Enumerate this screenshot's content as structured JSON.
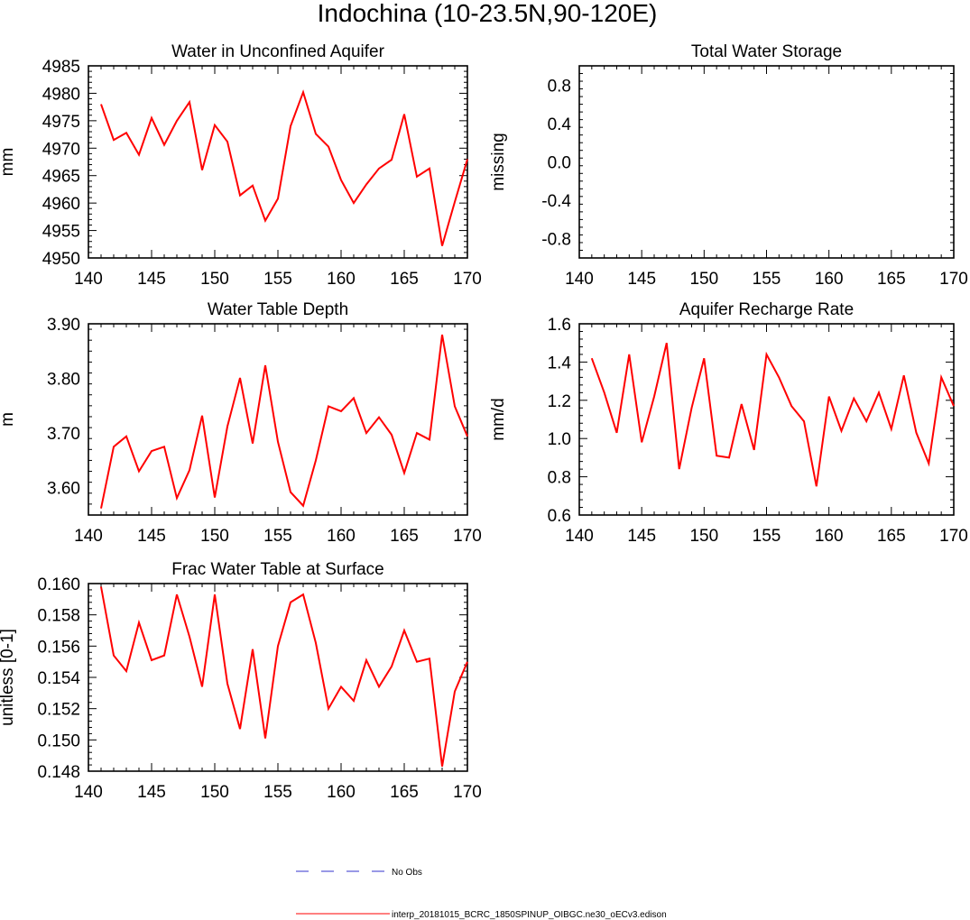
{
  "figure_title": "Indochina (10-23.5N,90-120E)",
  "colors": {
    "model": "#ff0000",
    "obs": "#3333cc",
    "axis": "#000000"
  },
  "legend": {
    "obs_label": "No Obs",
    "model_label": "interp_20181015_BCRC_1850SPINUP_OIBGC.ne30_oECv3.edison"
  },
  "chart_data": [
    {
      "id": "wa",
      "type": "line",
      "title": "Water in Unconfined Aquifer",
      "ylabel": "mm",
      "xlim": [
        140,
        170
      ],
      "ylim": [
        4950,
        4985
      ],
      "xticks": [
        140,
        145,
        150,
        155,
        160,
        165,
        170
      ],
      "xtick_labels": [
        "140",
        "145",
        "150",
        "155",
        "160",
        "165",
        "170"
      ],
      "yticks": [
        4950,
        4955,
        4960,
        4965,
        4970,
        4975,
        4980,
        4985
      ],
      "ytick_labels": [
        "4950",
        "4955",
        "4960",
        "4965",
        "4970",
        "4975",
        "4980",
        "4985"
      ],
      "x": [
        141,
        142,
        143,
        144,
        145,
        146,
        147,
        148,
        149,
        150,
        151,
        152,
        153,
        154,
        155,
        156,
        157,
        158,
        159,
        160,
        161,
        162,
        163,
        164,
        165,
        166,
        167,
        168,
        169,
        170
      ],
      "series": [
        {
          "name": "interp_20181015_BCRC_1850SPINUP_OIBGC.ne30_oECv3.edison",
          "values": [
            4978.0,
            4971.5,
            4972.8,
            4968.8,
            4975.5,
            4970.6,
            4975.0,
            4978.4,
            4966.0,
            4974.2,
            4971.2,
            4961.4,
            4963.2,
            4956.8,
            4960.8,
            4974.0,
            4980.2,
            4972.6,
            4970.3,
            4964.2,
            4960.0,
            4963.4,
            4966.3,
            4967.9,
            4976.2,
            4964.8,
            4966.3,
            4952.2,
            4960.2,
            4968.0
          ]
        }
      ]
    },
    {
      "id": "tws",
      "type": "line",
      "title": "Total Water Storage",
      "ylabel": "missing",
      "xlim": [
        140,
        170
      ],
      "ylim": [
        -1.0,
        1.0
      ],
      "xticks": [
        140,
        145,
        150,
        155,
        160,
        165,
        170
      ],
      "xtick_labels": [
        "140",
        "145",
        "150",
        "155",
        "160",
        "165",
        "170"
      ],
      "yticks": [
        -0.8,
        -0.4,
        0.0,
        0.4,
        0.8
      ],
      "ytick_labels": [
        "-0.8",
        "-0.4",
        "0.0",
        "0.4",
        "0.8"
      ],
      "x": [],
      "series": []
    },
    {
      "id": "wtd",
      "type": "line",
      "title": "Water Table Depth",
      "ylabel": "m",
      "xlim": [
        140,
        170
      ],
      "ylim": [
        3.55,
        3.9
      ],
      "xticks": [
        140,
        145,
        150,
        155,
        160,
        165,
        170
      ],
      "xtick_labels": [
        "140",
        "145",
        "150",
        "155",
        "160",
        "165",
        "170"
      ],
      "yticks": [
        3.6,
        3.7,
        3.8,
        3.9
      ],
      "ytick_labels": [
        "3.60",
        "3.70",
        "3.80",
        "3.90"
      ],
      "x": [
        141,
        142,
        143,
        144,
        145,
        146,
        147,
        148,
        149,
        150,
        151,
        152,
        153,
        154,
        155,
        156,
        157,
        158,
        159,
        160,
        161,
        162,
        163,
        164,
        165,
        166,
        167,
        168,
        169,
        170
      ],
      "series": [
        {
          "name": "interp_20181015_BCRC_1850SPINUP_OIBGC.ne30_oECv3.edison",
          "values": [
            3.562,
            3.675,
            3.694,
            3.63,
            3.667,
            3.675,
            3.581,
            3.632,
            3.732,
            3.582,
            3.712,
            3.801,
            3.681,
            3.824,
            3.684,
            3.592,
            3.567,
            3.65,
            3.749,
            3.74,
            3.764,
            3.7,
            3.729,
            3.697,
            3.627,
            3.7,
            3.688,
            3.88,
            3.749,
            3.694
          ]
        }
      ]
    },
    {
      "id": "qcharge",
      "type": "line",
      "title": "Aquifer Recharge Rate",
      "ylabel": "mm/d",
      "xlim": [
        140,
        170
      ],
      "ylim": [
        0.6,
        1.6
      ],
      "xticks": [
        140,
        145,
        150,
        155,
        160,
        165,
        170
      ],
      "xtick_labels": [
        "140",
        "145",
        "150",
        "155",
        "160",
        "165",
        "170"
      ],
      "yticks": [
        0.6,
        0.8,
        1.0,
        1.2,
        1.4,
        1.6
      ],
      "ytick_labels": [
        "0.6",
        "0.8",
        "1.0",
        "1.2",
        "1.4",
        "1.6"
      ],
      "x": [
        141,
        142,
        143,
        144,
        145,
        146,
        147,
        148,
        149,
        150,
        151,
        152,
        153,
        154,
        155,
        156,
        157,
        158,
        159,
        160,
        161,
        162,
        163,
        164,
        165,
        166,
        167,
        168,
        169,
        170
      ],
      "series": [
        {
          "name": "interp_20181015_BCRC_1850SPINUP_OIBGC.ne30_oECv3.edison",
          "values": [
            1.42,
            1.24,
            1.03,
            1.44,
            0.98,
            1.22,
            1.5,
            0.84,
            1.16,
            1.42,
            0.91,
            0.9,
            1.18,
            0.94,
            1.44,
            1.32,
            1.17,
            1.09,
            0.75,
            1.22,
            1.04,
            1.21,
            1.09,
            1.24,
            1.05,
            1.33,
            1.03,
            0.87,
            1.32,
            1.17
          ]
        }
      ]
    },
    {
      "id": "frwtbl",
      "type": "line",
      "title": "Frac Water Table at Surface",
      "ylabel": "unitless [0-1]",
      "xlim": [
        140,
        170
      ],
      "ylim": [
        0.148,
        0.16
      ],
      "xticks": [
        140,
        145,
        150,
        155,
        160,
        165,
        170
      ],
      "xtick_labels": [
        "140",
        "145",
        "150",
        "155",
        "160",
        "165",
        "170"
      ],
      "yticks": [
        0.148,
        0.15,
        0.152,
        0.154,
        0.156,
        0.158,
        0.16
      ],
      "ytick_labels": [
        "0.148",
        "0.150",
        "0.152",
        "0.154",
        "0.156",
        "0.158",
        "0.160"
      ],
      "x": [
        141,
        142,
        143,
        144,
        145,
        146,
        147,
        148,
        149,
        150,
        151,
        152,
        153,
        154,
        155,
        156,
        157,
        158,
        159,
        160,
        161,
        162,
        163,
        164,
        165,
        166,
        167,
        168,
        169,
        170
      ],
      "series": [
        {
          "name": "interp_20181015_BCRC_1850SPINUP_OIBGC.ne30_oECv3.edison",
          "values": [
            0.1598,
            0.1554,
            0.1544,
            0.1575,
            0.1551,
            0.1554,
            0.1593,
            0.1566,
            0.1534,
            0.1593,
            0.1536,
            0.1507,
            0.1558,
            0.1501,
            0.156,
            0.1588,
            0.1593,
            0.1562,
            0.152,
            0.1534,
            0.1525,
            0.1551,
            0.1534,
            0.1547,
            0.157,
            0.155,
            0.1552,
            0.1483,
            0.1531,
            0.155
          ]
        }
      ]
    }
  ]
}
